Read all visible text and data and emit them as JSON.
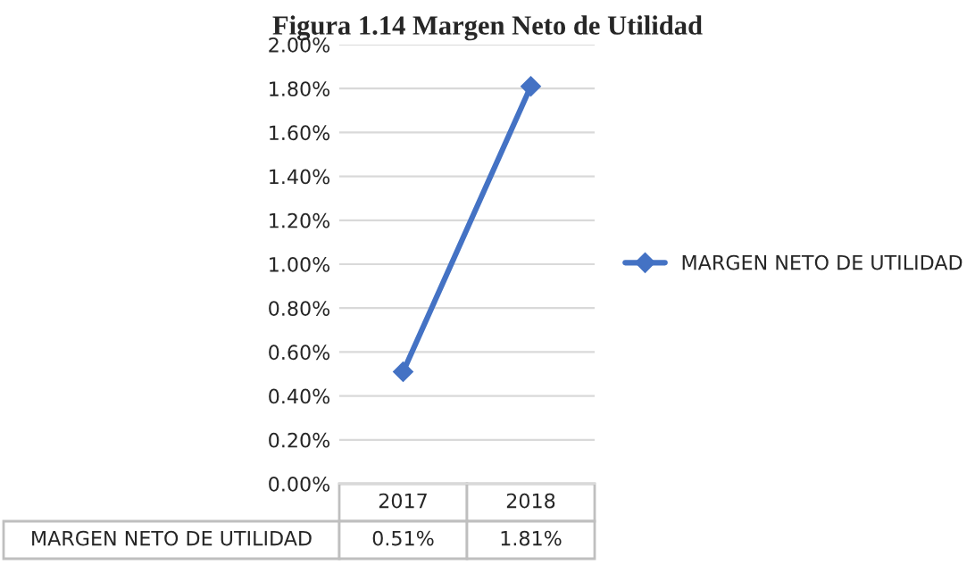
{
  "chart_data": {
    "type": "line",
    "title": "Figura 1.14 Margen Neto de Utilidad",
    "categories": [
      "2017",
      "2018"
    ],
    "series": [
      {
        "name": "MARGEN NETO DE UTILIDAD",
        "color": "#4472c4",
        "values": [
          0.51,
          1.81
        ],
        "value_labels": [
          "0.51%",
          "1.81%"
        ]
      }
    ],
    "ylim": [
      0,
      2
    ],
    "yticks": [
      {
        "value": 0,
        "label": "0.00%"
      },
      {
        "value": 0.2,
        "label": "0.20%"
      },
      {
        "value": 0.4,
        "label": "0.40%"
      },
      {
        "value": 0.6,
        "label": "0.60%"
      },
      {
        "value": 0.8,
        "label": "0.80%"
      },
      {
        "value": 1.0,
        "label": "1.00%"
      },
      {
        "value": 1.2,
        "label": "1.20%"
      },
      {
        "value": 1.4,
        "label": "1.40%"
      },
      {
        "value": 1.6,
        "label": "1.60%"
      },
      {
        "value": 1.8,
        "label": "1.80%"
      },
      {
        "value": 2.0,
        "label": "2.00%"
      }
    ],
    "grid": "y",
    "legend": "right",
    "marker": "diamond",
    "line_style": "solid"
  }
}
